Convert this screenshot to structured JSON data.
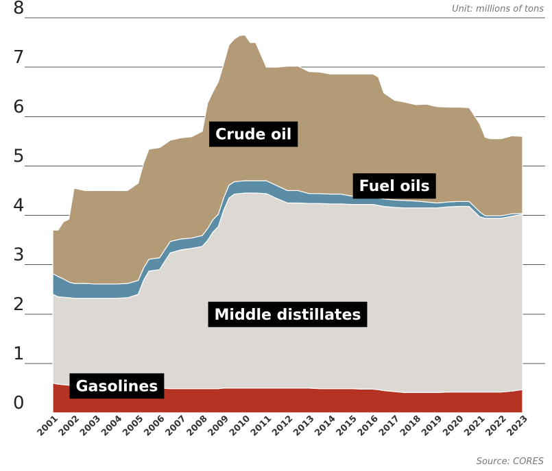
{
  "unit_note": "Unit: millions of tons",
  "source_note": "Source: CORES",
  "chart_data": {
    "type": "area",
    "stacked": true,
    "ylim": [
      0,
      8
    ],
    "y_ticks": [
      "0",
      "1",
      "2",
      "3",
      "4",
      "5",
      "6",
      "7",
      "8"
    ],
    "grid": "horizontal",
    "x_tick_labels": [
      "2001",
      "2002",
      "2003",
      "2004",
      "2005",
      "2006",
      "2007",
      "2008",
      "2009",
      "2010",
      "2011",
      "2012",
      "2013",
      "2014",
      "2015",
      "2016",
      "2017",
      "2018",
      "2019",
      "2020",
      "2021",
      "2022",
      "2023"
    ],
    "x": [
      2001.0,
      2001.25,
      2001.5,
      2001.75,
      2002.0,
      2002.5,
      2003.0,
      2003.5,
      2004.0,
      2004.5,
      2005.0,
      2005.25,
      2005.5,
      2006.0,
      2006.5,
      2007.0,
      2007.5,
      2008.0,
      2008.25,
      2008.5,
      2008.75,
      2009.0,
      2009.25,
      2009.5,
      2009.75,
      2010.0,
      2010.25,
      2010.5,
      2011.0,
      2011.5,
      2012.0,
      2012.5,
      2013.0,
      2013.5,
      2014.0,
      2014.5,
      2015.0,
      2015.5,
      2016.0,
      2016.25,
      2016.5,
      2017.0,
      2017.5,
      2018.0,
      2018.5,
      2019.0,
      2019.5,
      2020.0,
      2020.5,
      2021.0,
      2021.25,
      2021.5,
      2022.0,
      2022.5,
      2023.0
    ],
    "series": [
      {
        "name": "Gasolines",
        "color": "#b43323",
        "values": [
          0.6,
          0.58,
          0.57,
          0.56,
          0.55,
          0.53,
          0.52,
          0.52,
          0.51,
          0.51,
          0.5,
          0.5,
          0.5,
          0.5,
          0.49,
          0.49,
          0.49,
          0.49,
          0.49,
          0.49,
          0.49,
          0.5,
          0.5,
          0.5,
          0.5,
          0.5,
          0.5,
          0.5,
          0.5,
          0.5,
          0.5,
          0.5,
          0.5,
          0.49,
          0.49,
          0.49,
          0.49,
          0.48,
          0.48,
          0.47,
          0.45,
          0.43,
          0.41,
          0.41,
          0.41,
          0.41,
          0.42,
          0.42,
          0.42,
          0.42,
          0.42,
          0.42,
          0.42,
          0.44,
          0.47
        ]
      },
      {
        "name": "Middle distillates",
        "color": "#dcd8d4",
        "values": [
          1.8,
          1.77,
          1.77,
          1.77,
          1.77,
          1.79,
          1.8,
          1.8,
          1.81,
          1.82,
          1.9,
          2.18,
          2.37,
          2.4,
          2.75,
          2.81,
          2.84,
          2.88,
          3.0,
          3.17,
          3.28,
          3.6,
          3.85,
          3.93,
          3.94,
          3.95,
          3.95,
          3.95,
          3.94,
          3.84,
          3.75,
          3.75,
          3.74,
          3.75,
          3.74,
          3.74,
          3.73,
          3.74,
          3.74,
          3.73,
          3.73,
          3.73,
          3.74,
          3.74,
          3.74,
          3.74,
          3.75,
          3.76,
          3.76,
          3.55,
          3.52,
          3.52,
          3.52,
          3.54,
          3.55
        ]
      },
      {
        "name": "Fuel oils",
        "color": "#5b8ea6",
        "values": [
          0.42,
          0.41,
          0.37,
          0.32,
          0.3,
          0.3,
          0.29,
          0.29,
          0.29,
          0.29,
          0.28,
          0.25,
          0.24,
          0.24,
          0.23,
          0.22,
          0.21,
          0.22,
          0.24,
          0.25,
          0.25,
          0.25,
          0.26,
          0.25,
          0.25,
          0.25,
          0.25,
          0.25,
          0.26,
          0.26,
          0.25,
          0.25,
          0.2,
          0.2,
          0.2,
          0.2,
          0.17,
          0.16,
          0.15,
          0.15,
          0.15,
          0.15,
          0.15,
          0.14,
          0.12,
          0.1,
          0.1,
          0.1,
          0.1,
          0.1,
          0.05,
          0.05,
          0.05,
          0.05,
          0.02
        ]
      },
      {
        "name": "Crude oil",
        "color": "#b49b77",
        "values": [
          0.88,
          0.94,
          1.16,
          1.27,
          1.93,
          1.88,
          1.89,
          1.89,
          1.89,
          1.88,
          1.97,
          2.12,
          2.23,
          2.23,
          2.05,
          2.05,
          2.05,
          2.11,
          2.54,
          2.59,
          2.68,
          2.71,
          2.84,
          2.89,
          2.95,
          2.95,
          2.8,
          2.8,
          2.3,
          2.4,
          2.52,
          2.52,
          2.47,
          2.46,
          2.43,
          2.43,
          2.47,
          2.48,
          2.49,
          2.45,
          2.15,
          2.02,
          1.99,
          1.95,
          1.98,
          1.95,
          1.92,
          1.91,
          1.9,
          1.78,
          1.59,
          1.56,
          1.56,
          1.58,
          1.56
        ]
      }
    ],
    "annotations": [
      {
        "text": "Crude oil",
        "x": 2010.4,
        "y": 5.65
      },
      {
        "text": "Fuel oils",
        "x": 2017.0,
        "y": 4.6
      },
      {
        "text": "Middle distillates",
        "x": 2012.0,
        "y": 2.0
      },
      {
        "text": "Gasolines",
        "x": 2004.0,
        "y": 0.55
      }
    ],
    "legend": "none"
  }
}
